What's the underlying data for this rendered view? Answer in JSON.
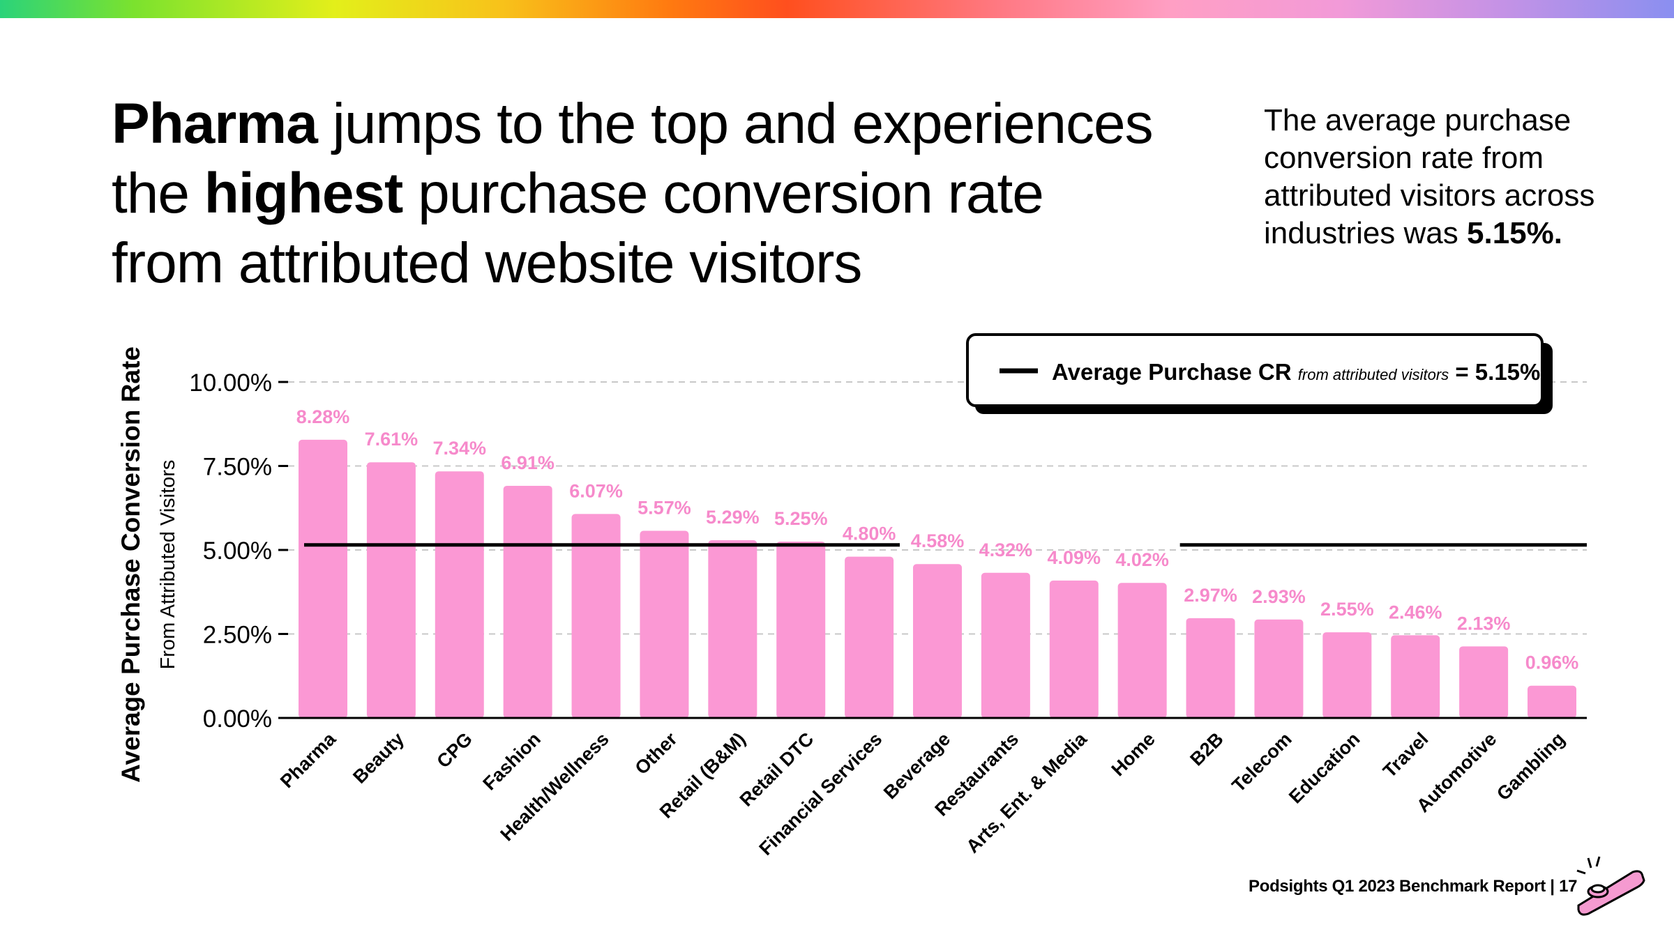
{
  "headline": {
    "part1_bold": "Pharma",
    "part2": " jumps to the top and experiences",
    "part3": "the ",
    "part4_bold": "highest",
    "part5": " purchase conversion rate",
    "part6": "from attributed website visitors"
  },
  "sidenote": {
    "text": "The average purchase conversion rate from attributed visitors across industries was ",
    "value_bold": "5.15%."
  },
  "legend": {
    "label_bold": "Average Purchase CR",
    "label_italic": "from attributed visitors",
    "suffix": " = 5.15%"
  },
  "footer": {
    "text": "Podsights Q1 2023 Benchmark Report | 17"
  },
  "colors": {
    "bar": "#fb98d4",
    "bar_label": "#f68acb",
    "average_line": "#000000",
    "grid": "#c8c8c8"
  },
  "chart_data": {
    "type": "bar",
    "title": "Pharma jumps to the top and experiences the highest purchase conversion rate from attributed website visitors",
    "ylabel": "Average Purchase Conversion Rate",
    "ylabel_sub": "From Attributed Visitors",
    "xlabel": "",
    "ylim": [
      0,
      10
    ],
    "yticks": [
      "0.00%",
      "2.50%",
      "5.00%",
      "7.50%",
      "10.00%"
    ],
    "ytick_values": [
      0,
      2.5,
      5,
      7.5,
      10
    ],
    "grid": true,
    "legend_position": "top-right",
    "average": 5.15,
    "categories": [
      "Pharma",
      "Beauty",
      "CPG",
      "Fashion",
      "Health/Wellness",
      "Other",
      "Retail (B&M)",
      "Retail DTC",
      "Financial Services",
      "Beverage",
      "Restaurants",
      "Arts, Ent. & Media",
      "Home",
      "B2B",
      "Telecom",
      "Education",
      "Travel",
      "Automotive",
      "Gambling"
    ],
    "values": [
      8.28,
      7.61,
      7.34,
      6.91,
      6.07,
      5.57,
      5.29,
      5.25,
      4.8,
      4.58,
      4.32,
      4.09,
      4.02,
      2.97,
      2.93,
      2.55,
      2.46,
      2.13,
      0.96
    ],
    "value_labels": [
      "8.28%",
      "7.61%",
      "7.34%",
      "6.91%",
      "6.07%",
      "5.57%",
      "5.29%",
      "5.25%",
      "4.80%",
      "4.58%",
      "4.32%",
      "4.09%",
      "4.02%",
      "2.97%",
      "2.93%",
      "2.55%",
      "2.46%",
      "2.13%",
      "0.96%"
    ]
  }
}
